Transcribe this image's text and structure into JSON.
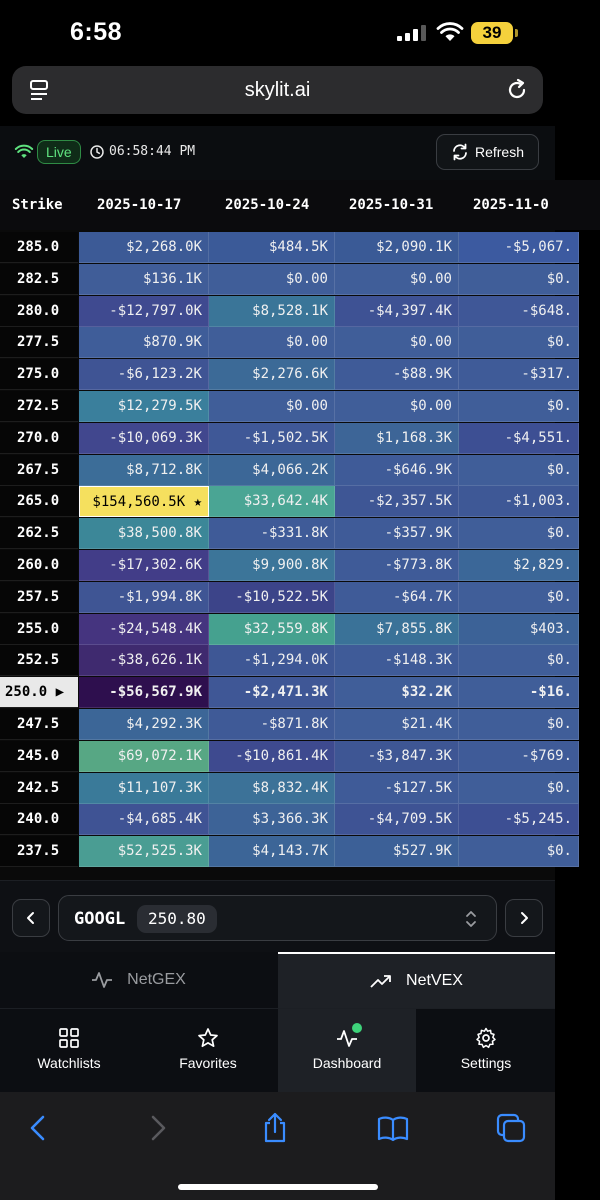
{
  "status_bar": {
    "time": "6:58",
    "battery": "39"
  },
  "browser": {
    "url": "skylit.ai"
  },
  "header": {
    "live_label": "Live",
    "clock_time": "06:58:44 PM",
    "refresh_label": "Refresh"
  },
  "table": {
    "columns": [
      "Strike",
      "2025-10-17",
      "2025-10-24",
      "2025-10-31",
      "2025-11-0"
    ],
    "rows": [
      {
        "strike": "285.0",
        "values": [
          "$2,268.0K",
          "$484.5K",
          "$2,090.1K",
          "-$5,067."
        ]
      },
      {
        "strike": "282.5",
        "values": [
          "$136.1K",
          "$0.00",
          "$0.00",
          "$0."
        ]
      },
      {
        "strike": "280.0",
        "values": [
          "-$12,797.0K",
          "$8,528.1K",
          "-$4,397.4K",
          "-$648."
        ]
      },
      {
        "strike": "277.5",
        "values": [
          "$870.9K",
          "$0.00",
          "$0.00",
          "$0."
        ]
      },
      {
        "strike": "275.0",
        "values": [
          "-$6,123.2K",
          "$2,276.6K",
          "-$88.9K",
          "-$317."
        ]
      },
      {
        "strike": "272.5",
        "values": [
          "$12,279.5K",
          "$0.00",
          "$0.00",
          "$0."
        ]
      },
      {
        "strike": "270.0",
        "values": [
          "-$10,069.3K",
          "-$1,502.5K",
          "$1,168.3K",
          "-$4,551."
        ]
      },
      {
        "strike": "267.5",
        "values": [
          "$8,712.8K",
          "$4,066.2K",
          "-$646.9K",
          "$0."
        ]
      },
      {
        "strike": "265.0",
        "values": [
          "$154,560.5K ★",
          "$33,642.4K",
          "-$2,357.5K",
          "-$1,003."
        ]
      },
      {
        "strike": "262.5",
        "values": [
          "$38,500.8K",
          "-$331.8K",
          "-$357.9K",
          "$0."
        ]
      },
      {
        "strike": "260.0",
        "values": [
          "-$17,302.6K",
          "$9,900.8K",
          "-$773.8K",
          "$2,829."
        ]
      },
      {
        "strike": "257.5",
        "values": [
          "-$1,994.8K",
          "-$10,522.5K",
          "-$64.7K",
          "$0."
        ]
      },
      {
        "strike": "255.0",
        "values": [
          "-$24,548.4K",
          "$32,559.8K",
          "$7,855.8K",
          "$403."
        ]
      },
      {
        "strike": "252.5",
        "values": [
          "-$38,626.1K",
          "-$1,294.0K",
          "-$148.3K",
          "$0."
        ]
      },
      {
        "strike": "250.0 ▶",
        "values": [
          "-$56,567.9K",
          "-$2,471.3K",
          "$32.2K",
          "-$16."
        ]
      },
      {
        "strike": "247.5",
        "values": [
          "$4,292.3K",
          "-$871.8K",
          "$21.4K",
          "$0."
        ]
      },
      {
        "strike": "245.0",
        "values": [
          "$69,072.1K",
          "-$10,861.4K",
          "-$3,847.3K",
          "-$769."
        ]
      },
      {
        "strike": "242.5",
        "values": [
          "$11,107.3K",
          "$8,832.4K",
          "-$127.5K",
          "$0."
        ]
      },
      {
        "strike": "240.0",
        "values": [
          "-$4,685.4K",
          "$3,366.3K",
          "-$4,709.5K",
          "-$5,245."
        ]
      },
      {
        "strike": "237.5",
        "values": [
          "$52,525.3K",
          "$4,143.7K",
          "$527.9K",
          "$0."
        ]
      }
    ],
    "colors": [
      [
        "#3c5a96",
        "#3b5a98",
        "#3a5a96",
        "#3c5aa0"
      ],
      [
        "#405d98",
        "#405e99",
        "#405e99",
        "#405e99"
      ],
      [
        "#3f4a90",
        "#3a7598",
        "#3e5294",
        "#3f5797"
      ],
      [
        "#3f5d99",
        "#405e99",
        "#405e99",
        "#405e99"
      ],
      [
        "#3f5494",
        "#3c6a97",
        "#3f5b98",
        "#3f5b98"
      ],
      [
        "#3a7f9c",
        "#405e99",
        "#405e99",
        "#405e99"
      ],
      [
        "#41478e",
        "#3f5897",
        "#3d6597",
        "#3d4f93"
      ],
      [
        "#3c6d98",
        "#3c6797",
        "#3f5b98",
        "#405e99"
      ],
      [
        "#f5e05e",
        "#4aa594",
        "#3e5695",
        "#3e5896"
      ],
      [
        "#3c8798",
        "#3f5b98",
        "#3f5b98",
        "#405e99"
      ],
      [
        "#423d88",
        "#3c7599",
        "#3f5b98",
        "#3b6798"
      ],
      [
        "#3f5594",
        "#3c4489",
        "#3f5b98",
        "#405e99"
      ],
      [
        "#45347f",
        "#45a18f",
        "#3a7298",
        "#3c6297"
      ],
      [
        "#3f2a6f",
        "#3e5795",
        "#3f5b98",
        "#405e99"
      ],
      [
        "#2e0f4e",
        "#3f5796",
        "#405e99",
        "#405e99"
      ],
      [
        "#3c6697",
        "#3f5a97",
        "#405e99",
        "#405e99"
      ],
      [
        "#57a784",
        "#3e4a8f",
        "#3e5694",
        "#3f5b98"
      ],
      [
        "#3a7a99",
        "#3c7298",
        "#3f5b98",
        "#405e99"
      ],
      [
        "#3f5394",
        "#3d6397",
        "#3e5394",
        "#3d4f93"
      ],
      [
        "#4a9d93",
        "#3c6597",
        "#3c6097",
        "#405e99"
      ]
    ],
    "current_row_index": 14,
    "highlight_cell": [
      8,
      0
    ]
  },
  "ticker": {
    "symbol": "GOOGL",
    "price": "250.80"
  },
  "mode_tabs": [
    {
      "label": "NetGEX",
      "icon": "activity-icon",
      "active": false
    },
    {
      "label": "NetVEX",
      "icon": "trending-up-icon",
      "active": true
    }
  ],
  "bottom_nav": [
    {
      "label": "Watchlists",
      "icon": "grid-icon"
    },
    {
      "label": "Favorites",
      "icon": "star-icon"
    },
    {
      "label": "Dashboard",
      "icon": "pulse-icon"
    },
    {
      "label": "Settings",
      "icon": "gear-icon"
    }
  ]
}
